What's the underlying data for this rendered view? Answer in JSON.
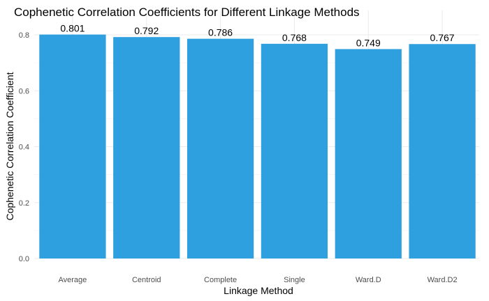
{
  "chart_data": {
    "type": "bar",
    "title": "Cophenetic Correlation Coefficients for Different Linkage Methods",
    "xlabel": "Linkage Method",
    "ylabel": "Cophenetic Correlation Coefficient",
    "categories": [
      "Average",
      "Centroid",
      "Complete",
      "Single",
      "Ward.D",
      "Ward.D2"
    ],
    "values": [
      0.801,
      0.792,
      0.786,
      0.768,
      0.749,
      0.767
    ],
    "data_labels": [
      "0.801",
      "0.792",
      "0.786",
      "0.768",
      "0.749",
      "0.767"
    ],
    "ylim": [
      0,
      0.8
    ],
    "yticks": [
      0.0,
      0.2,
      0.4,
      0.6,
      0.8
    ],
    "ytick_labels": [
      "0.0",
      "0.2",
      "0.4",
      "0.6",
      "0.8"
    ],
    "grid": true,
    "legend": "none",
    "bar_color": "#2E9FDF",
    "background_color": "#FFFFFF",
    "grid_color": "#EBEBEB"
  }
}
